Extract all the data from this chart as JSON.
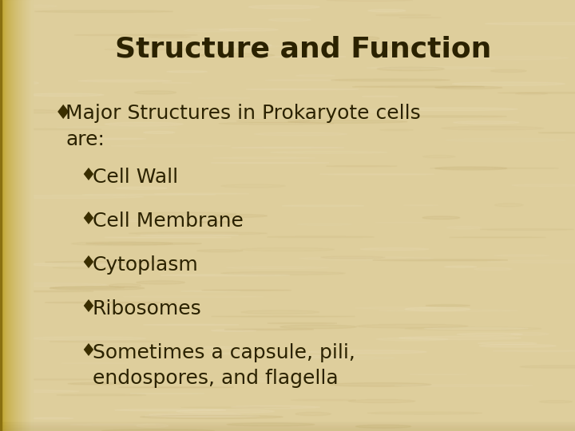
{
  "title": "Structure and Function",
  "title_fontsize": 26,
  "title_color": "#2b2200",
  "title_fontweight": "bold",
  "bg_color_main": "#dece9c",
  "bg_color_spine": "#b8960a",
  "bg_color_spine2": "#c8a820",
  "bullet_symbol": "♦",
  "bullet_color": "#3a2e00",
  "text_color": "#2b2200",
  "main_bullet_text": "Major Structures in Prokaryote cells\nare:",
  "sub_bullets": [
    "Cell Wall",
    "Cell Membrane",
    "Cytoplasm",
    "Ribosomes",
    "Sometimes a capsule, pili,\nendospores, and flagella"
  ],
  "main_fontsize": 18,
  "sub_fontsize": 18,
  "figwidth": 7.2,
  "figheight": 5.4,
  "dpi": 100
}
